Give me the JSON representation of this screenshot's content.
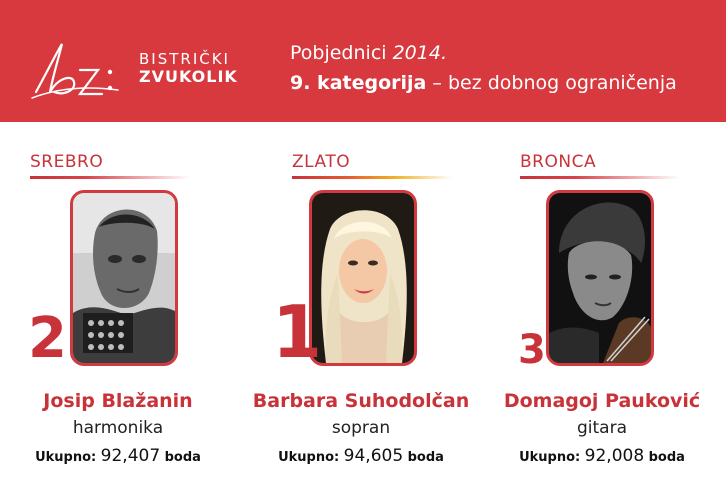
{
  "header": {
    "logo_initials": "bz:",
    "logo_line1": "BISTRIČKI",
    "logo_line2": "ZVUKOLIK",
    "title_prefix": "Pobjednici ",
    "title_year": "2014.",
    "category_bold": "9. kategorija",
    "category_rest": " – bez dobnog ograničenja"
  },
  "winners": [
    {
      "medal": "SREBRO",
      "rank": "2",
      "name": "Josip Blažanin",
      "instrument": "harmonika",
      "total_label": "Ukupno:",
      "total_value": "92,407",
      "unit": "boda"
    },
    {
      "medal": "ZLATO",
      "rank": "1",
      "name": "Barbara Suhodolčan",
      "instrument": "sopran",
      "total_label": "Ukupno:",
      "total_value": "94,605",
      "unit": "boda"
    },
    {
      "medal": "BRONCA",
      "rank": "3",
      "name": "Domagoj Pauković",
      "instrument": "gitara",
      "total_label": "Ukupno:",
      "total_value": "92,008",
      "unit": "boda"
    }
  ],
  "colors": {
    "header_bg": "#d8393f",
    "accent": "#c8333a",
    "gold_line": "#f0b429"
  }
}
